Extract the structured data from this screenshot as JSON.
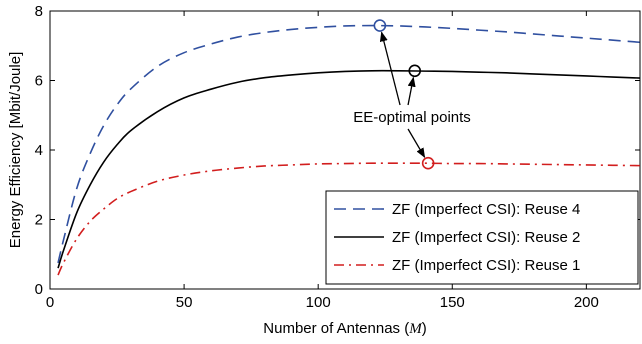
{
  "chart_data": {
    "type": "line",
    "title": "",
    "xlabel": "Number of Antennas (M)",
    "xlabel_plain": "Number of Antennas (",
    "xlabel_var": "M",
    "xlabel_close": ")",
    "ylabel": "Energy Efficiency [Mbit/Joule]",
    "xlim": [
      0,
      220
    ],
    "ylim": [
      0,
      8
    ],
    "xticks": [
      0,
      50,
      100,
      150,
      200
    ],
    "yticks": [
      0,
      2,
      4,
      6,
      8
    ],
    "grid": false,
    "legend_position": "bottom-right",
    "series": [
      {
        "name": "ZF (Imperfect CSI): Reuse 4",
        "color": "#3050a0",
        "style": "dashed",
        "x": [
          3,
          5,
          10,
          15,
          20,
          25,
          30,
          40,
          50,
          60,
          70,
          80,
          90,
          100,
          110,
          120,
          130,
          140,
          150,
          160,
          170,
          180,
          190,
          200,
          210,
          220
        ],
        "y": [
          0.75,
          1.4,
          2.9,
          3.9,
          4.7,
          5.3,
          5.75,
          6.4,
          6.8,
          7.05,
          7.25,
          7.38,
          7.47,
          7.53,
          7.57,
          7.58,
          7.57,
          7.54,
          7.5,
          7.45,
          7.4,
          7.34,
          7.28,
          7.22,
          7.16,
          7.1
        ]
      },
      {
        "name": "ZF (Imperfect CSI): Reuse 2",
        "color": "#000000",
        "style": "solid",
        "x": [
          3,
          5,
          10,
          15,
          20,
          25,
          30,
          40,
          50,
          60,
          70,
          80,
          90,
          100,
          110,
          120,
          130,
          140,
          150,
          160,
          170,
          180,
          190,
          200,
          210,
          220
        ],
        "y": [
          0.6,
          1.1,
          2.2,
          3.0,
          3.65,
          4.15,
          4.55,
          5.1,
          5.5,
          5.75,
          5.95,
          6.08,
          6.16,
          6.22,
          6.26,
          6.28,
          6.28,
          6.27,
          6.26,
          6.24,
          6.22,
          6.19,
          6.16,
          6.13,
          6.1,
          6.07
        ]
      },
      {
        "name": "ZF (Imperfect CSI): Reuse 1",
        "color": "#d21e1e",
        "style": "dashdot",
        "x": [
          3,
          5,
          10,
          15,
          20,
          25,
          30,
          40,
          50,
          60,
          70,
          80,
          90,
          100,
          110,
          120,
          130,
          140,
          150,
          160,
          170,
          180,
          190,
          200,
          210,
          220
        ],
        "y": [
          0.4,
          0.75,
          1.45,
          1.95,
          2.3,
          2.6,
          2.8,
          3.1,
          3.28,
          3.4,
          3.48,
          3.54,
          3.57,
          3.6,
          3.61,
          3.62,
          3.62,
          3.62,
          3.61,
          3.61,
          3.6,
          3.59,
          3.58,
          3.57,
          3.56,
          3.55
        ]
      }
    ],
    "optimal_points": [
      {
        "series": 0,
        "x": 123,
        "y": 7.58
      },
      {
        "series": 1,
        "x": 136,
        "y": 6.28
      },
      {
        "series": 2,
        "x": 141,
        "y": 3.62
      }
    ],
    "annotation": {
      "text": "EE-optimal points",
      "anchor_x": 135,
      "anchor_y": 4.95
    }
  }
}
